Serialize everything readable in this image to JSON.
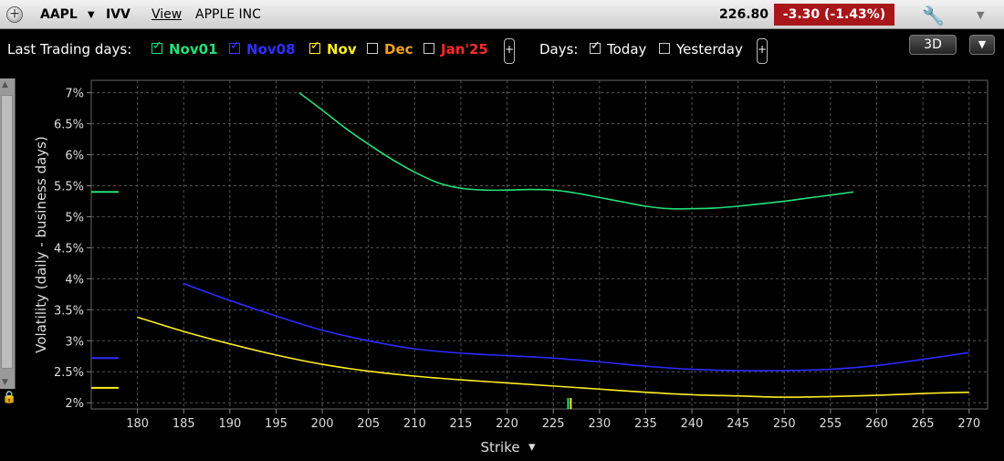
{
  "header": {
    "symbol": "AAPL",
    "symbol_caret": "▼",
    "tool": "IVV",
    "view_menu": "View",
    "company": "APPLE INC",
    "price": "226.80",
    "change": "-3.30  (-1.43%)",
    "wrench_icon": "wrench-icon",
    "dropdown_icon": "▼"
  },
  "legend": {
    "last_trading_label": "Last Trading days:",
    "series": [
      {
        "label": "Nov01",
        "checked": true,
        "color": "#22e07a"
      },
      {
        "label": "Nov08",
        "checked": true,
        "color": "#2b2bff"
      },
      {
        "label": "Nov",
        "checked": true,
        "color": "#ffee22"
      },
      {
        "label": "Dec",
        "checked": false,
        "color": "#f0a020"
      },
      {
        "label": "Jan'25",
        "checked": false,
        "color": "#ff2a2a"
      }
    ],
    "plus": "+",
    "days_label": "Days:",
    "days": [
      {
        "label": "Today",
        "checked": true
      },
      {
        "label": "Yesterday",
        "checked": false
      }
    ]
  },
  "controls": {
    "btn_3d": "3D",
    "btn_menu": "▼"
  },
  "chart_data": {
    "type": "line",
    "xlabel": "Strike",
    "xlabel_caret": "▾",
    "ylabel": "Volatility (daily - business days)",
    "xlim": [
      175,
      272
    ],
    "ylim": [
      1.9,
      7.2
    ],
    "x_ticks": [
      180,
      185,
      190,
      195,
      200,
      205,
      210,
      215,
      220,
      225,
      230,
      235,
      240,
      245,
      250,
      255,
      260,
      265,
      270
    ],
    "y_ticks": [
      {
        "value": 2,
        "label": "2%"
      },
      {
        "value": 2.5,
        "label": "2.5%"
      },
      {
        "value": 3,
        "label": "3%"
      },
      {
        "value": 3.5,
        "label": "3.5%"
      },
      {
        "value": 4,
        "label": "4%"
      },
      {
        "value": 4.5,
        "label": "4.5%"
      },
      {
        "value": 5,
        "label": "5%"
      },
      {
        "value": 5.5,
        "label": "5.5%"
      },
      {
        "value": 6,
        "label": "6%"
      },
      {
        "value": 6.5,
        "label": "6.5%"
      },
      {
        "value": 7,
        "label": "7%"
      }
    ],
    "grid": true,
    "current_price": 226.8,
    "series": [
      {
        "name": "Nov01",
        "color": "#22e07a",
        "atm_value": 5.4,
        "x": [
          197.5,
          200,
          202.5,
          205,
          207.5,
          210,
          212.5,
          215,
          217.5,
          220,
          222.5,
          225,
          227.5,
          230,
          232.5,
          235,
          237.5,
          240,
          242.5,
          245,
          247.5,
          250,
          252.5,
          255,
          257.5
        ],
        "y": [
          7.0,
          6.72,
          6.43,
          6.17,
          5.93,
          5.72,
          5.55,
          5.46,
          5.43,
          5.43,
          5.44,
          5.43,
          5.38,
          5.31,
          5.24,
          5.17,
          5.13,
          5.13,
          5.14,
          5.17,
          5.21,
          5.25,
          5.3,
          5.35,
          5.4
        ]
      },
      {
        "name": "Nov08",
        "color": "#2b2bff",
        "atm_value": 2.72,
        "x": [
          185,
          190,
          195,
          200,
          205,
          210,
          215,
          220,
          225,
          230,
          235,
          240,
          245,
          250,
          255,
          260,
          265,
          270
        ],
        "y": [
          3.92,
          3.65,
          3.4,
          3.17,
          3.0,
          2.87,
          2.8,
          2.76,
          2.72,
          2.66,
          2.59,
          2.54,
          2.52,
          2.52,
          2.54,
          2.6,
          2.7,
          2.81
        ]
      },
      {
        "name": "Nov",
        "color": "#ffee22",
        "atm_value": 2.24,
        "x": [
          180,
          185,
          190,
          195,
          200,
          205,
          210,
          215,
          220,
          225,
          230,
          235,
          240,
          245,
          250,
          255,
          260,
          265,
          270
        ],
        "y": [
          3.38,
          3.15,
          2.95,
          2.77,
          2.62,
          2.51,
          2.43,
          2.37,
          2.32,
          2.27,
          2.22,
          2.17,
          2.13,
          2.11,
          2.09,
          2.1,
          2.12,
          2.15,
          2.17
        ]
      }
    ]
  }
}
